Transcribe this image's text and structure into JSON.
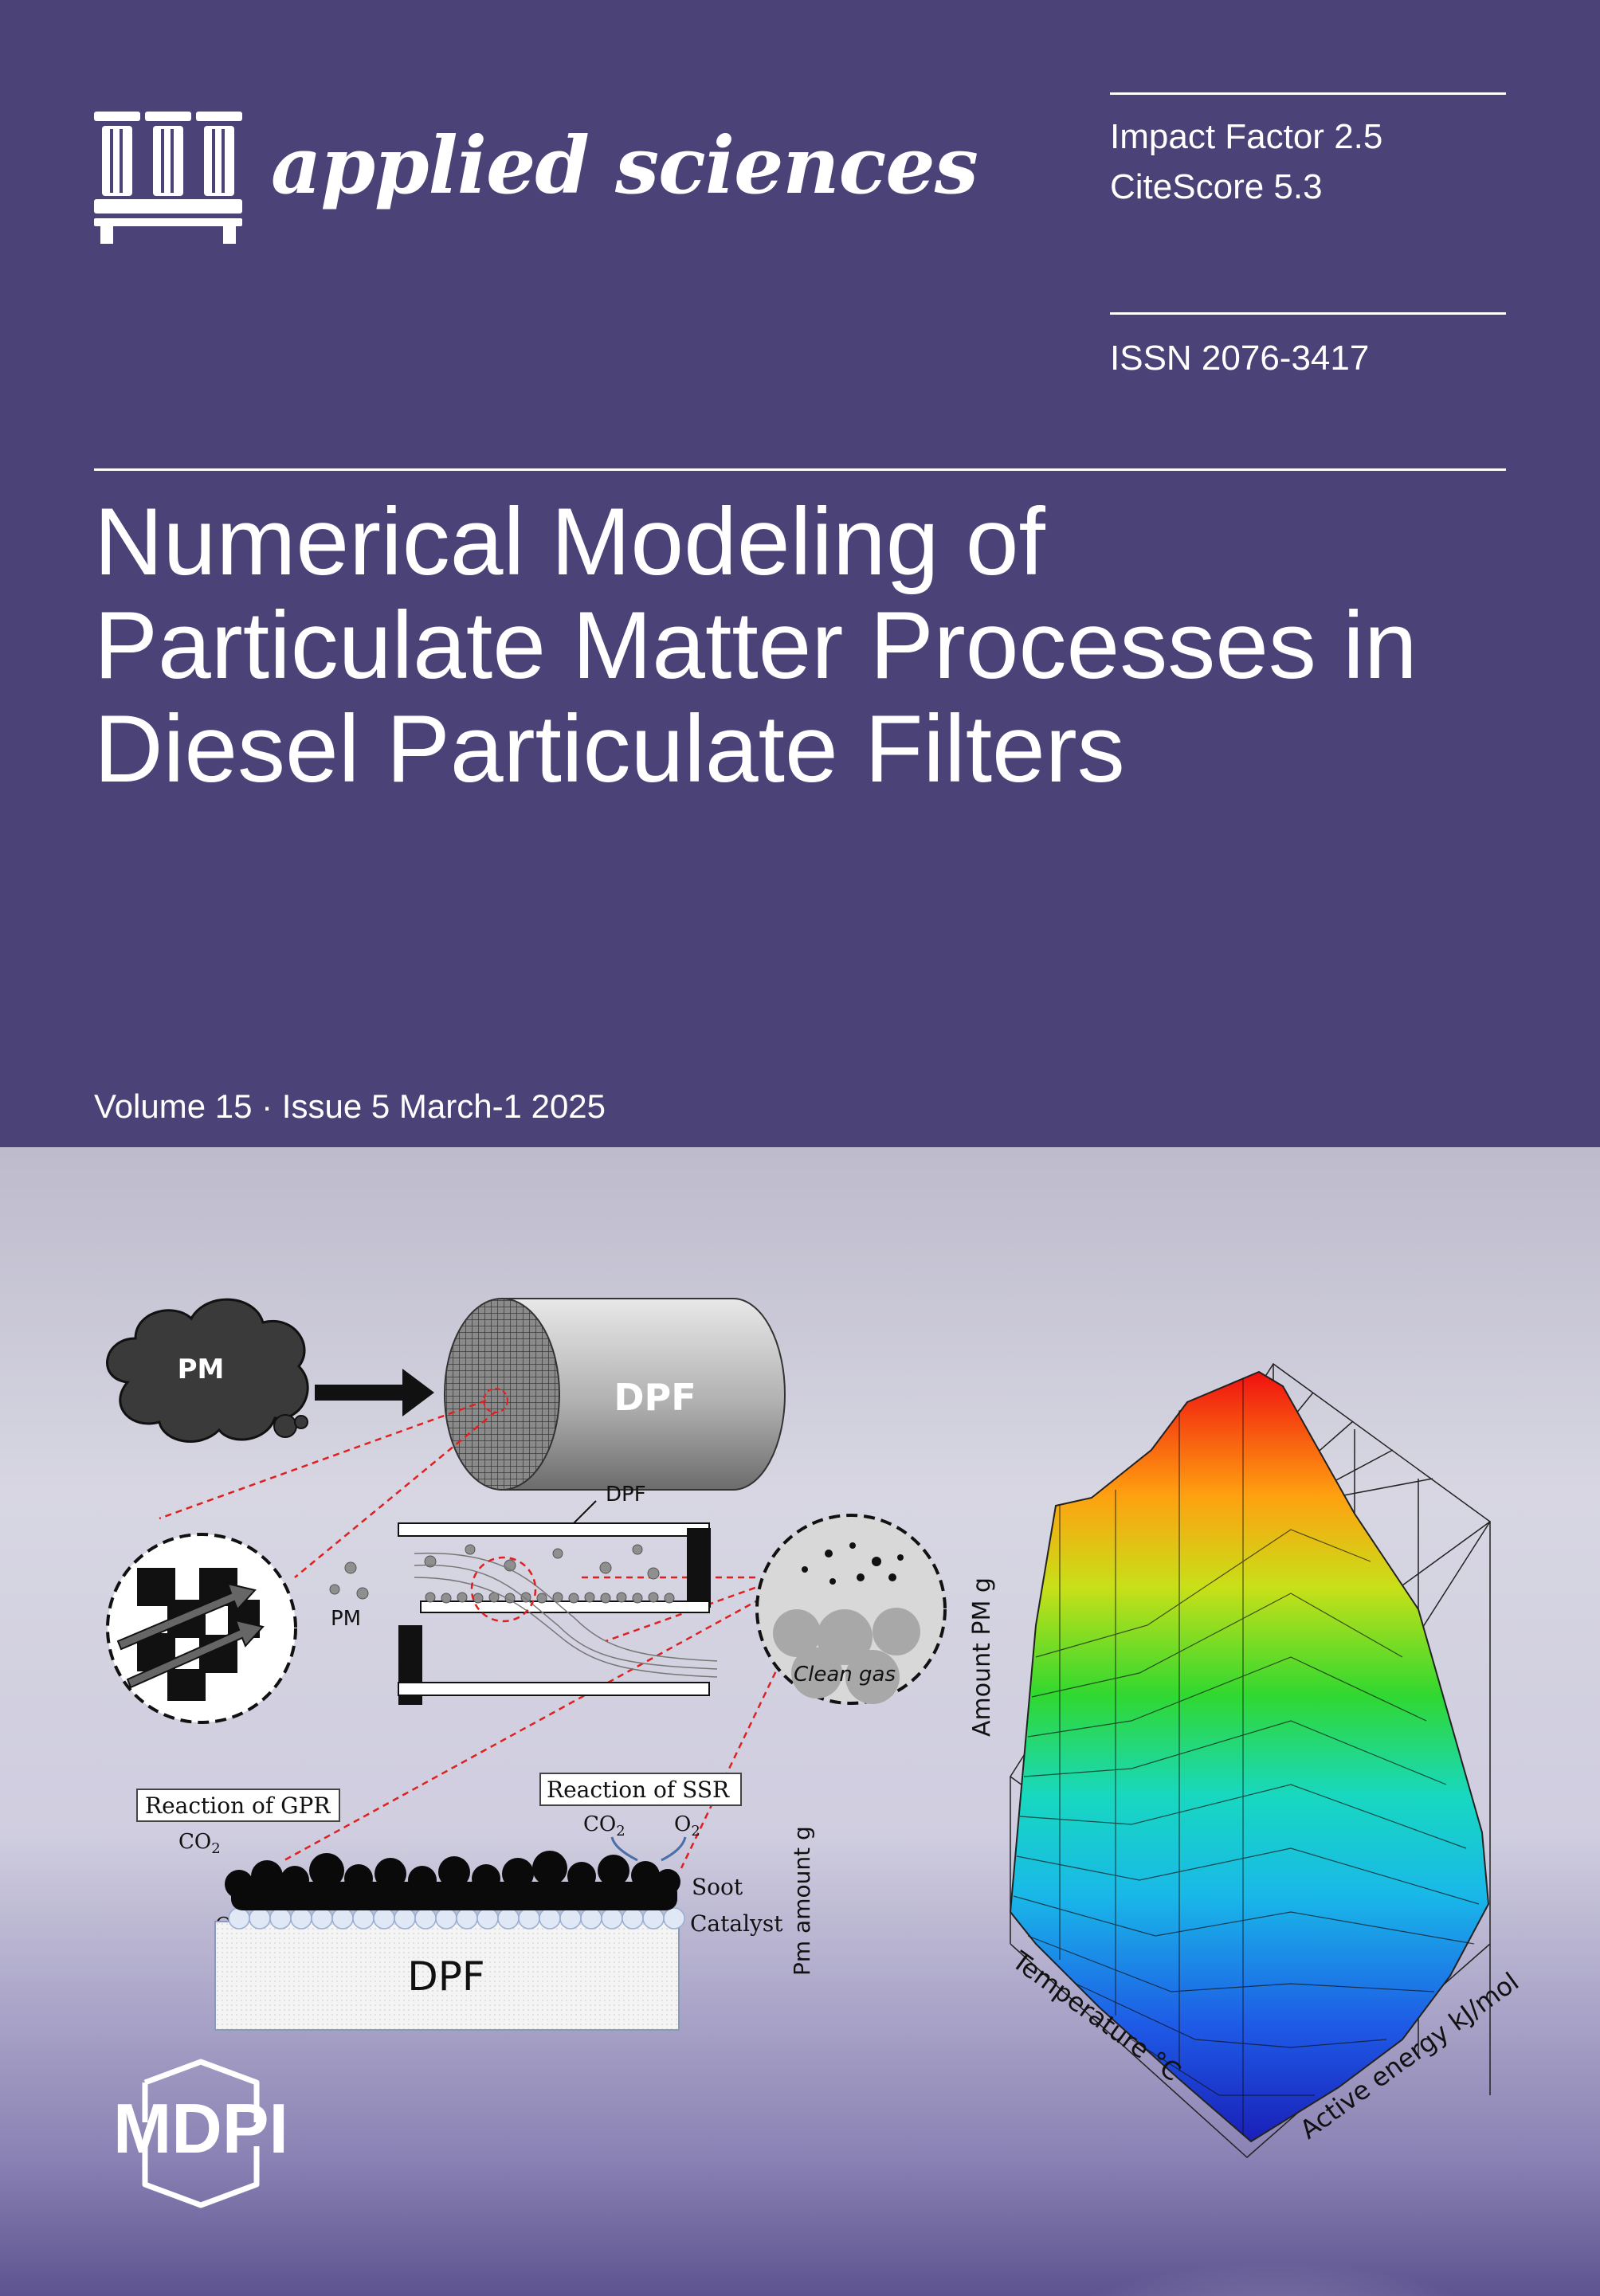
{
  "journal": {
    "name": "applied sciences",
    "publisher": "MDPI"
  },
  "metrics": {
    "impact_factor": "Impact Factor 2.5",
    "citescore": "CiteScore 5.3",
    "issn": "ISSN 2076-3417"
  },
  "article": {
    "title_lines": [
      "Numerical Modeling of",
      "Particulate Matter Processes in",
      "Diesel Particulate Filters"
    ]
  },
  "issue": {
    "line": "Volume 15 · Issue 5 March-1 2025"
  },
  "figure": {
    "pm_cloud": "PM",
    "dpf_cylinder": "DPF",
    "dpf_channel": "DPF",
    "pm_particles": "PM",
    "clean_gas": "Clean gas",
    "reaction_gpr": "Reaction of GPR",
    "reaction_ssr": "Reaction of SSR",
    "co2": "CO",
    "o2": "O",
    "sub2": "2",
    "soot": "Soot",
    "catalyst": "Catalyst",
    "dpf_substrate": "DPF",
    "pm_amount_axis": "Pm amount g",
    "surface_z_label": "Amount PM  g",
    "surface_x_label": "Temperature °C",
    "surface_y_label": "Active energy kJ/mol"
  },
  "colors": {
    "cover_purple": "#4b4278",
    "rule_white": "#ffffff",
    "leader_red": "#e02020"
  }
}
